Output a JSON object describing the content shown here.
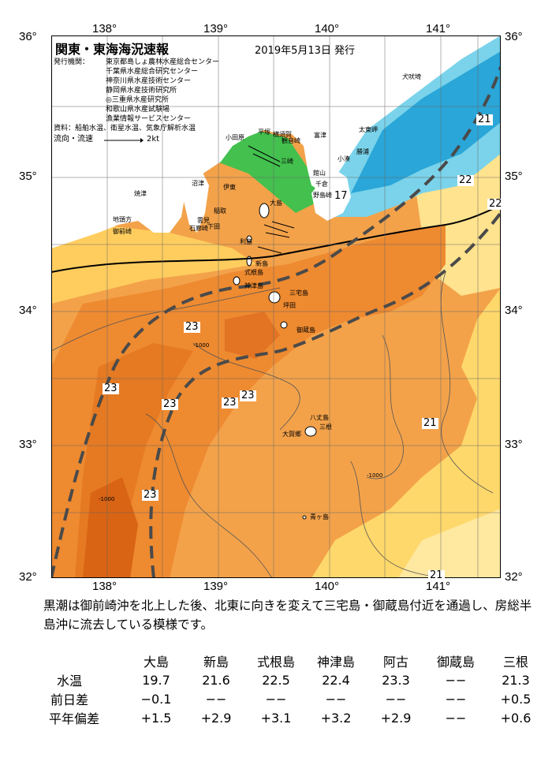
{
  "header": {
    "title": "関東・東海海況速報",
    "date": "2019年5月13日 発行",
    "issuer_label": "発行機関：",
    "issuers": [
      "東京都島しょ農林水産総合センター",
      "千葉県水産総合研究センター",
      "神奈川県水産技術センター",
      "静岡県水産技術研究所",
      "◎三重県水産研究所",
      "和歌山県水産試験場",
      "漁業情報サービスセンター"
    ],
    "source": "資料：船舶水温、衛星水温、気象庁解析水温",
    "current_label": "流向・流速",
    "current_scale": "2kt"
  },
  "axes": {
    "lon_labels": [
      "138°",
      "139°",
      "140°",
      "141°"
    ],
    "lat_labels": [
      "36°",
      "35°",
      "34°",
      "33°",
      "32°"
    ]
  },
  "map": {
    "isotherm_labels": [
      "17",
      "21",
      "22",
      "22",
      "23",
      "23",
      "23",
      "23",
      "23",
      "23",
      "21",
      "21"
    ],
    "depth_label": "-1000",
    "place_names": [
      "犬吠埼",
      "太東岬",
      "勝浦",
      "小湊",
      "館山",
      "千倉",
      "野島崎",
      "富津",
      "横須賀",
      "観音崎",
      "三崎",
      "平塚",
      "小田原",
      "伊東",
      "稲取",
      "下田",
      "雲見",
      "石廊崎",
      "沼津",
      "焼津",
      "御前崎",
      "地頭方",
      "大島",
      "利島",
      "新島",
      "式根島",
      "神津島",
      "三宅島",
      "坪田",
      "御蔵島",
      "八丈島",
      "三根",
      "大賀郷",
      "青ヶ島"
    ],
    "colors": {
      "water_cold": "#2aa6d8",
      "water_cool": "#7ad3ea",
      "water_green": "#43c04e",
      "water_yellow": "#ffd86b",
      "water_orange": "#f3a24a",
      "water_warm": "#ee8a30",
      "water_hot": "#e06c18",
      "land": "#ffffff",
      "kuroshio_axis": "#4a4a4a"
    }
  },
  "description": "黒潮は御前崎沖を北上した後、北東に向きを変えて三宅島・御蔵島付近を通過し、房総半島沖に流去している模様です。",
  "table": {
    "stations": [
      "大島",
      "新島",
      "式根島",
      "神津島",
      "阿古",
      "御蔵島",
      "三根"
    ],
    "rows": [
      {
        "label": "水温",
        "values": [
          "19.7",
          "21.6",
          "22.5",
          "22.4",
          "23.3",
          "−−",
          "21.3"
        ]
      },
      {
        "label": "前日差",
        "values": [
          "−0.1",
          "−−",
          "−−",
          "−−",
          "−−",
          "−−",
          "+0.5"
        ]
      },
      {
        "label": "平年偏差",
        "values": [
          "+1.5",
          "+2.9",
          "+3.1",
          "+3.2",
          "+2.9",
          "−−",
          "+0.6"
        ]
      }
    ]
  }
}
